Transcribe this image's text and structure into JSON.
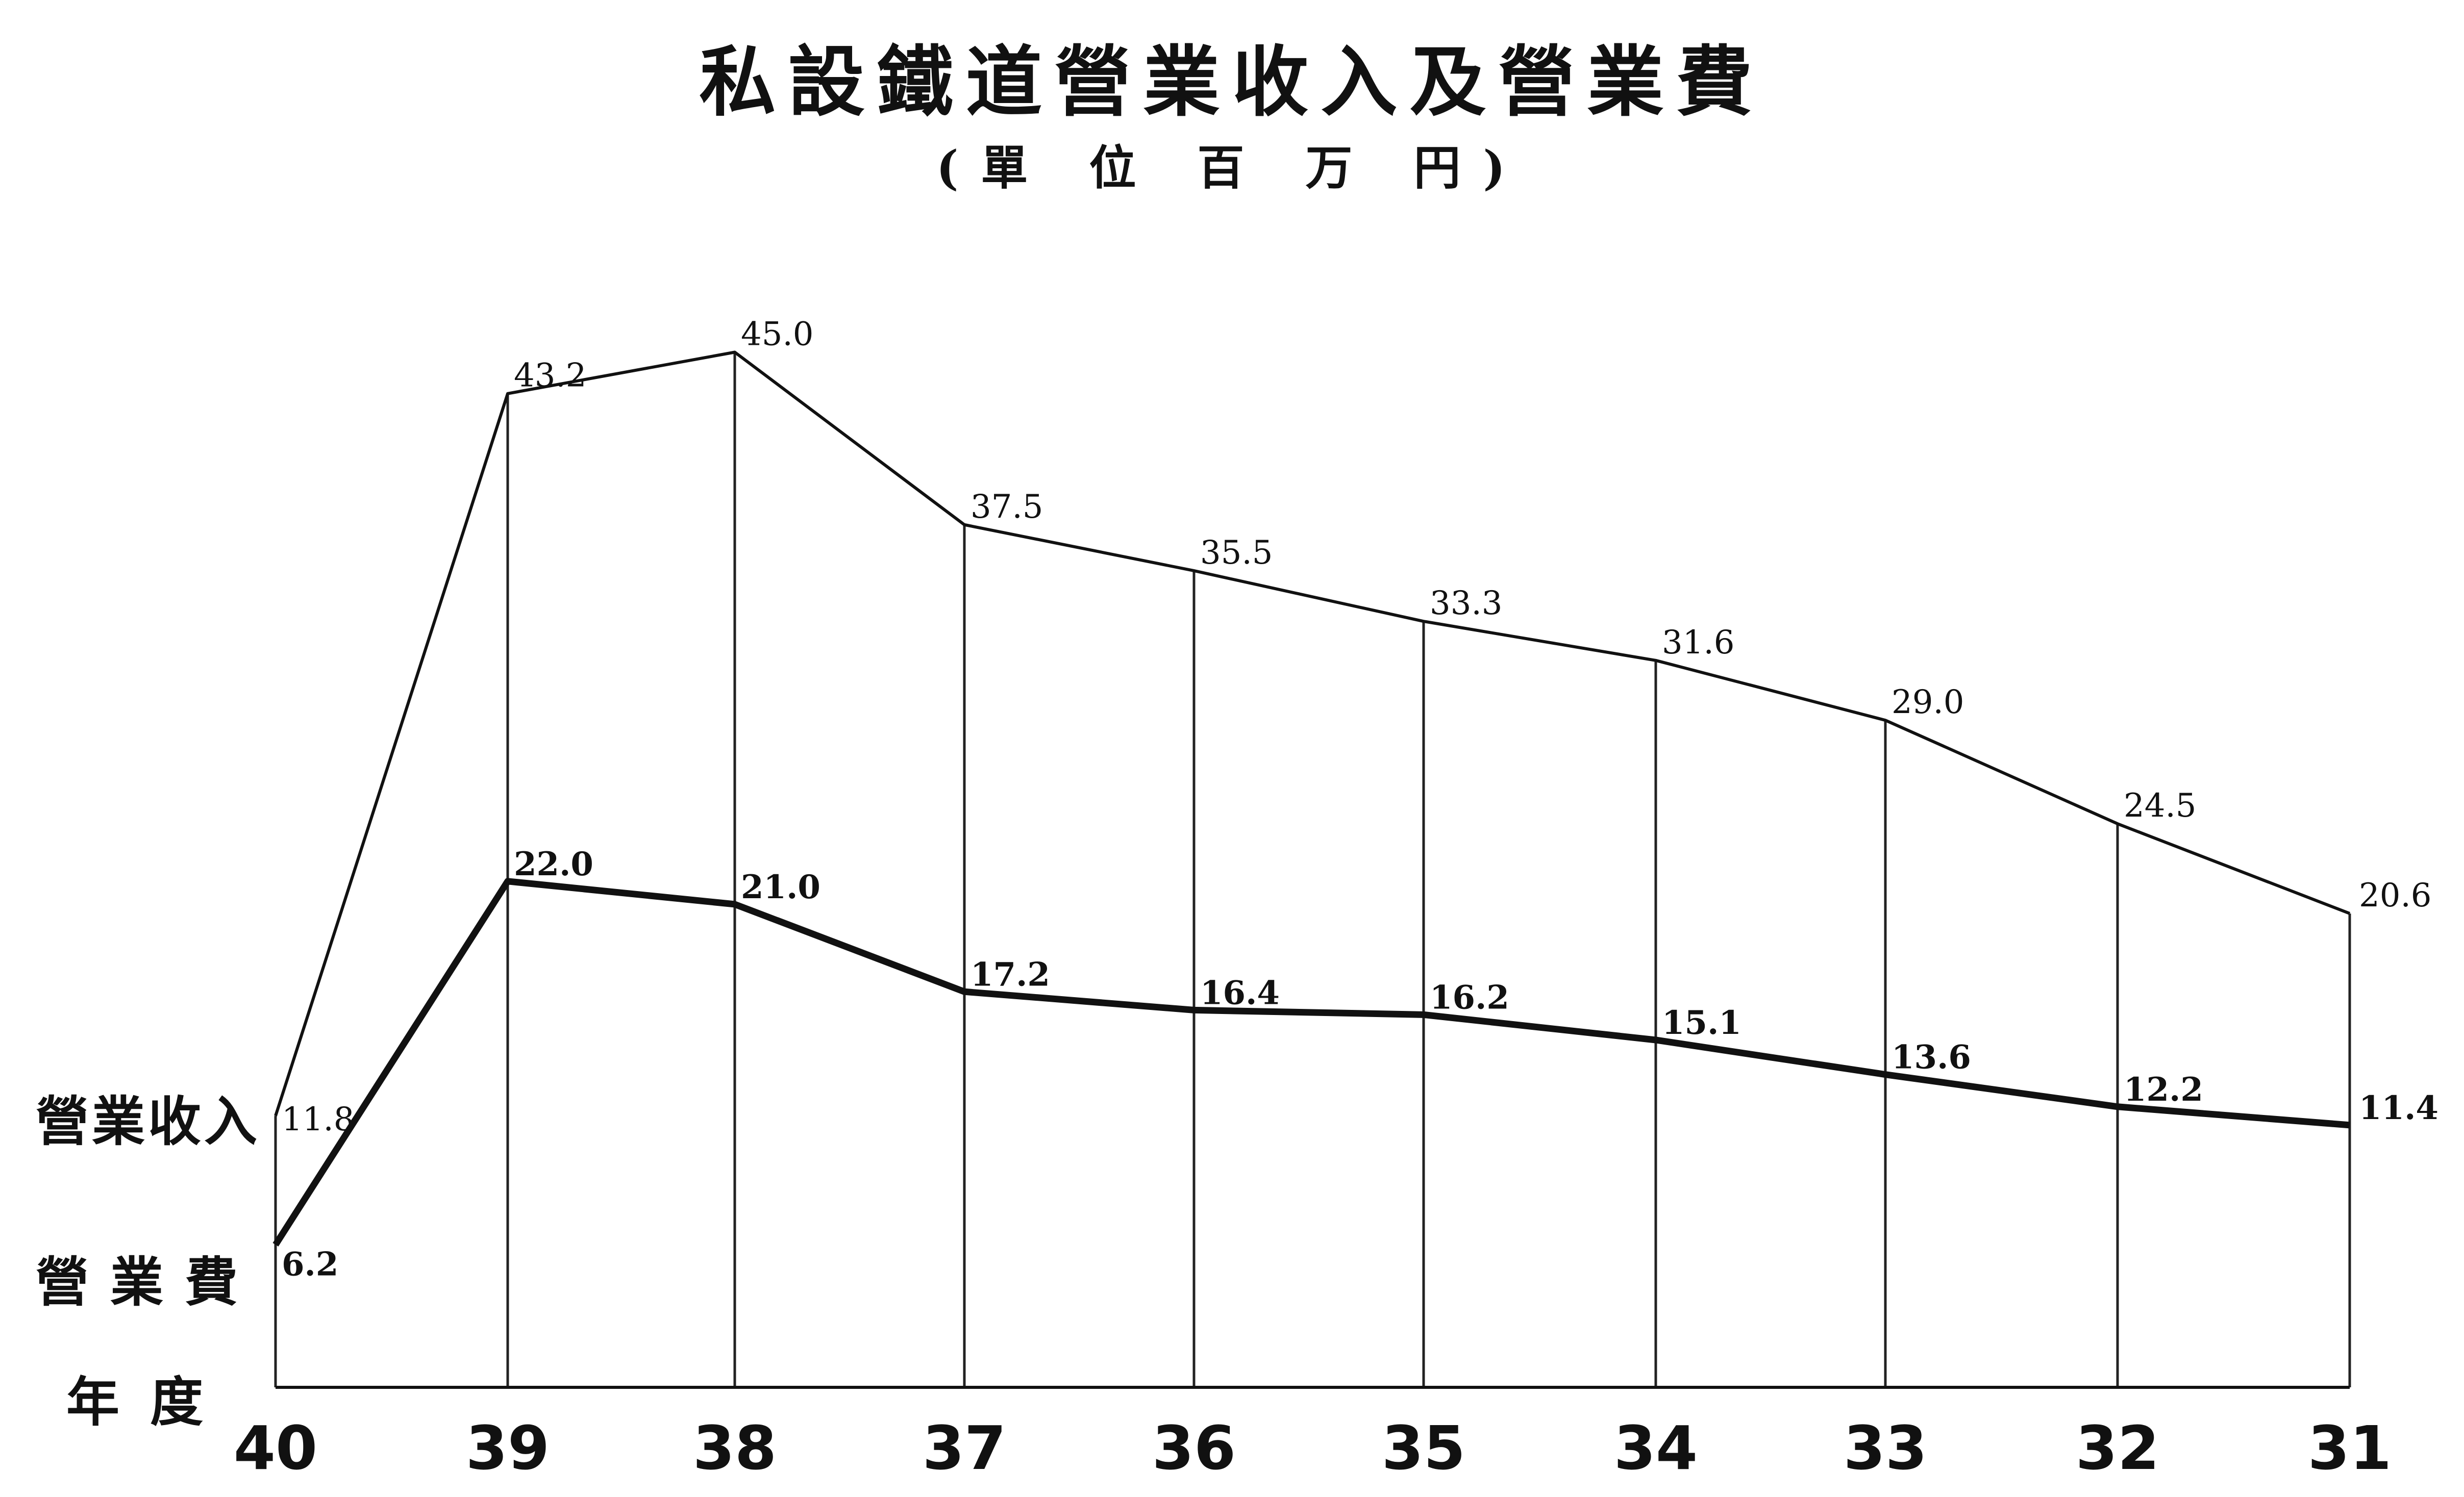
{
  "chart_data": {
    "type": "line",
    "title": "私設鐵道營業收入及營業費",
    "subtitle": "(單 位 百 万 円)",
    "x_axis_label": "年度",
    "categories": [
      "40",
      "39",
      "38",
      "37",
      "36",
      "35",
      "34",
      "33",
      "32",
      "31"
    ],
    "series": [
      {
        "name": "營業收入",
        "values": [
          11.8,
          43.2,
          45.0,
          37.5,
          35.5,
          33.3,
          31.6,
          29.0,
          24.5,
          20.6
        ],
        "labels": [
          "11.8",
          "43.2",
          "45.0",
          "37.5",
          "35.5",
          "33.3",
          "31.6",
          "29.0",
          "24.5",
          "20.6"
        ]
      },
      {
        "name": "營業費",
        "values": [
          6.2,
          22.0,
          21.0,
          17.2,
          16.4,
          16.2,
          15.1,
          13.6,
          12.2,
          11.4
        ],
        "labels": [
          "6.2",
          "22.0",
          "21.0",
          "17.2",
          "16.4",
          "16.2",
          "15.1",
          "13.6",
          "12.2",
          "11.4"
        ]
      }
    ],
    "ylim": [
      0,
      48
    ],
    "grid": "vertical lines at each year",
    "colors": {
      "line": "#111111",
      "background": "#ffffff"
    }
  }
}
